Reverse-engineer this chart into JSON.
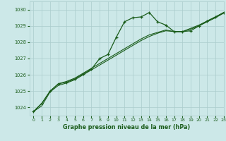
{
  "title": "Graphe pression niveau de la mer (hPa)",
  "bg_color": "#cce8e8",
  "grid_color": "#aacccc",
  "line_color": "#1a5c1a",
  "xlim": [
    -0.5,
    23
  ],
  "ylim": [
    1023.5,
    1030.5
  ],
  "yticks": [
    1024,
    1025,
    1026,
    1027,
    1028,
    1029,
    1030
  ],
  "xticks": [
    0,
    1,
    2,
    3,
    4,
    5,
    6,
    7,
    8,
    9,
    10,
    11,
    12,
    13,
    14,
    15,
    16,
    17,
    18,
    19,
    20,
    21,
    22,
    23
  ],
  "series1_x": [
    0,
    1,
    2,
    3,
    4,
    5,
    6,
    7,
    8,
    9,
    10,
    11,
    12,
    13,
    14,
    15,
    16,
    17,
    18,
    19,
    20,
    21,
    22,
    23
  ],
  "series1_y": [
    1023.75,
    1024.25,
    1025.0,
    1025.45,
    1025.55,
    1025.75,
    1026.05,
    1026.35,
    1027.0,
    1027.25,
    1028.3,
    1029.25,
    1029.5,
    1029.55,
    1029.82,
    1029.25,
    1029.05,
    1028.65,
    1028.65,
    1028.7,
    1029.0,
    1029.3,
    1029.55,
    1029.82
  ],
  "series2_x": [
    0,
    1,
    2,
    3,
    4,
    5,
    6,
    7,
    8,
    9,
    10,
    11,
    12,
    13,
    14,
    15,
    16,
    17,
    18,
    19,
    20,
    21,
    22,
    23
  ],
  "series2_y": [
    1023.75,
    1024.25,
    1025.0,
    1025.45,
    1025.6,
    1025.8,
    1026.1,
    1026.4,
    1026.7,
    1027.0,
    1027.3,
    1027.6,
    1027.9,
    1028.2,
    1028.45,
    1028.6,
    1028.75,
    1028.65,
    1028.65,
    1028.85,
    1029.05,
    1029.3,
    1029.55,
    1029.82
  ],
  "series3_x": [
    0,
    1,
    2,
    3,
    4,
    5,
    6,
    7,
    8,
    9,
    10,
    11,
    12,
    13,
    14,
    15,
    16,
    17,
    18,
    19,
    20,
    21,
    22,
    23
  ],
  "series3_y": [
    1023.75,
    1024.1,
    1024.95,
    1025.35,
    1025.5,
    1025.7,
    1026.0,
    1026.3,
    1026.6,
    1026.9,
    1027.2,
    1027.5,
    1027.8,
    1028.1,
    1028.35,
    1028.55,
    1028.7,
    1028.65,
    1028.65,
    1028.8,
    1029.0,
    1029.25,
    1029.5,
    1029.78
  ]
}
